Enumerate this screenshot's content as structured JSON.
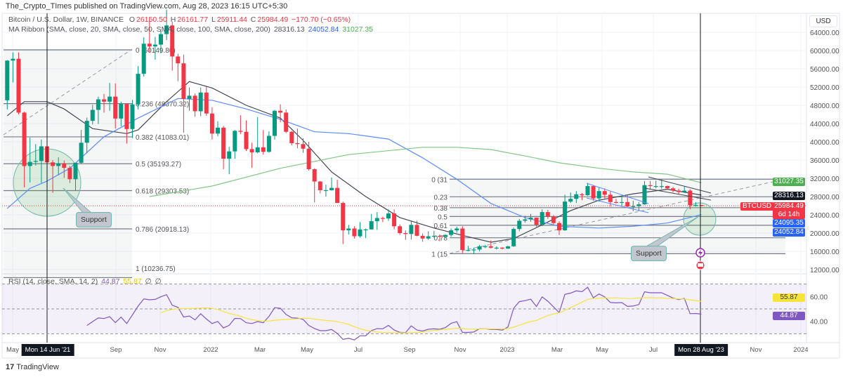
{
  "header": {
    "publisher_line": "The_Crypto_TImes published on TradingView.com, Aug 28, 2023 16:15 UTC+5:30"
  },
  "legend": {
    "symbol": "Bitcoin / U.S. Dollar, 1W, BINANCE",
    "o_label": "O",
    "o": "26150.50",
    "h_label": "H",
    "h": "26161.77",
    "l_label": "L",
    "l": "25911.44",
    "c_label": "C",
    "c": "25984.49",
    "change": "−170.70 (−0.65%)"
  },
  "ma_legend": {
    "label": "MA Ribbon (SMA, close, 20, SMA, close, 50, SMA, close, 100, SMA, close, 200)",
    "v1": "28316.13",
    "v2": "24052.84",
    "v3": "31027.35"
  },
  "rsi_legend": {
    "label": "RSI (14, close, SMA, 14, 2)",
    "rsi": "44.87",
    "sma": "55.87",
    "extra1": "∅",
    "extra2": "∅"
  },
  "price_axis": {
    "currency": "USD",
    "ticks": [
      "64000.00",
      "60000.00",
      "56000.00",
      "52000.00",
      "48000.00",
      "44000.00",
      "40000.00",
      "36000.00",
      "32000.00",
      "28000.00",
      "24000.00",
      "20000.00",
      "16000.00",
      "12000.00"
    ],
    "tick_values": [
      64000,
      60000,
      56000,
      52000,
      48000,
      44000,
      40000,
      36000,
      32000,
      28000,
      24000,
      20000,
      16000,
      12000
    ]
  },
  "rsi_axis": {
    "ticks": [
      "60.00",
      "40.00"
    ]
  },
  "badges": {
    "ma200": "31027.35",
    "ma20": "28316.13",
    "price": "25984.49",
    "countdown": "6d 14h",
    "level_a": "24095.35",
    "ma50": "24052.84",
    "symbol_tag": "BTCUSD",
    "rsi_sma": "55.87",
    "rsi": "44.87"
  },
  "time_axis": {
    "labels": [
      "May",
      "Sep",
      "Nov",
      "2022",
      "Mar",
      "May",
      "Jul",
      "Sep",
      "Nov",
      "2023",
      "Mar",
      "May",
      "Jul",
      "Nov",
      "2024"
    ],
    "crosshair_left": "Mon 14 Jun '21",
    "crosshair_right": "Mon 28 Aug '23"
  },
  "fib_left": {
    "labels": [
      "0 (60149.80)",
      "0.236 (48370.32)",
      "0.382 (41083.01)",
      "0.5 (35193.27)",
      "0.618 (29303.53)",
      "0.786 (20918.13)",
      "1 (10236.75)"
    ],
    "levels": [
      0,
      0.236,
      0.382,
      0.5,
      0.618,
      0.786,
      1
    ],
    "top": 60149.8,
    "bottom": 10236.75
  },
  "fib_right": {
    "labels": [
      "0 (31",
      "0.23",
      "0.38",
      "0.5",
      "0.61",
      "0.78",
      "1 (15"
    ],
    "levels": [
      0,
      0.236,
      0.382,
      0.5,
      0.618,
      0.786,
      1
    ],
    "top": 31804,
    "bottom": 15476
  },
  "annotations": {
    "support_left": "Support",
    "support_right": "Support"
  },
  "footer": {
    "logo": "TradingView",
    "logo_mark": "17"
  },
  "colors": {
    "up": "#089981",
    "down": "#f23645",
    "sma20": "#434651",
    "sma50": "#5b8cff",
    "sma200": "#81c784",
    "rsi": "#7e57c2",
    "rsi_sma": "#f5e53b",
    "fib": "#787b86",
    "support": "#4caf50"
  },
  "chart_data": {
    "type": "candlestick",
    "title": "Bitcoin / U.S. Dollar, 1W, BINANCE",
    "ylim": [
      12000,
      66000
    ],
    "y_scale": "linear",
    "grid": true,
    "dates": [
      "2021-04-26",
      "2021-05-03",
      "2021-05-10",
      "2021-05-17",
      "2021-05-24",
      "2021-05-31",
      "2021-06-07",
      "2021-06-14",
      "2021-06-21",
      "2021-06-28",
      "2021-07-05",
      "2021-07-12",
      "2021-07-19",
      "2021-07-26",
      "2021-08-02",
      "2021-08-09",
      "2021-08-16",
      "2021-08-23",
      "2021-08-30",
      "2021-09-06",
      "2021-09-13",
      "2021-09-20",
      "2021-09-27",
      "2021-10-04",
      "2021-10-11",
      "2021-10-18",
      "2021-10-25",
      "2021-11-01",
      "2021-11-08",
      "2021-11-15",
      "2021-11-22",
      "2021-11-29",
      "2021-12-06",
      "2021-12-13",
      "2021-12-20",
      "2021-12-27",
      "2022-01-03",
      "2022-01-10",
      "2022-01-17",
      "2022-01-24",
      "2022-01-31",
      "2022-02-07",
      "2022-02-14",
      "2022-02-21",
      "2022-02-28",
      "2022-03-07",
      "2022-03-14",
      "2022-03-21",
      "2022-03-28",
      "2022-04-04",
      "2022-04-11",
      "2022-04-18",
      "2022-04-25",
      "2022-05-02",
      "2022-05-09",
      "2022-05-16",
      "2022-05-23",
      "2022-05-30",
      "2022-06-06",
      "2022-06-13",
      "2022-06-20",
      "2022-06-27",
      "2022-07-04",
      "2022-07-11",
      "2022-07-18",
      "2022-07-25",
      "2022-08-01",
      "2022-08-08",
      "2022-08-15",
      "2022-08-22",
      "2022-08-29",
      "2022-09-05",
      "2022-09-12",
      "2022-09-19",
      "2022-09-26",
      "2022-10-03",
      "2022-10-10",
      "2022-10-17",
      "2022-10-24",
      "2022-10-31",
      "2022-11-07",
      "2022-11-14",
      "2022-11-21",
      "2022-11-28",
      "2022-12-05",
      "2022-12-12",
      "2022-12-19",
      "2022-12-26",
      "2023-01-02",
      "2023-01-09",
      "2023-01-16",
      "2023-01-23",
      "2023-01-30",
      "2023-02-06",
      "2023-02-13",
      "2023-02-20",
      "2023-02-27",
      "2023-03-06",
      "2023-03-13",
      "2023-03-20",
      "2023-03-27",
      "2023-04-03",
      "2023-04-10",
      "2023-04-17",
      "2023-04-24",
      "2023-05-01",
      "2023-05-08",
      "2023-05-15",
      "2023-05-22",
      "2023-05-29",
      "2023-06-05",
      "2023-06-12",
      "2023-06-19",
      "2023-06-26",
      "2023-07-03",
      "2023-07-10",
      "2023-07-17",
      "2023-07-24",
      "2023-07-31",
      "2023-08-07",
      "2023-08-14",
      "2023-08-21",
      "2023-08-28"
    ],
    "ohlc": [
      [
        49100,
        57900,
        47100,
        57800
      ],
      [
        57800,
        59600,
        53000,
        58200
      ],
      [
        58200,
        59600,
        46000,
        46400
      ],
      [
        46400,
        46600,
        30000,
        34700
      ],
      [
        34700,
        40900,
        31100,
        35600
      ],
      [
        35600,
        39500,
        34800,
        35800
      ],
      [
        35800,
        40500,
        31000,
        39000
      ],
      [
        39000,
        41300,
        32000,
        35500
      ],
      [
        35500,
        36000,
        28800,
        34700
      ],
      [
        34700,
        36600,
        32700,
        35300
      ],
      [
        35300,
        35900,
        32100,
        34300
      ],
      [
        34300,
        34700,
        31000,
        31800
      ],
      [
        31800,
        35400,
        29300,
        35400
      ],
      [
        35400,
        42600,
        35200,
        39800
      ],
      [
        39800,
        45300,
        37500,
        44600
      ],
      [
        44600,
        48100,
        43800,
        47000
      ],
      [
        47000,
        49900,
        43900,
        49300
      ],
      [
        49300,
        50500,
        46400,
        48800
      ],
      [
        48800,
        52900,
        46800,
        49900
      ],
      [
        49900,
        52800,
        42900,
        45100
      ],
      [
        45100,
        48800,
        43400,
        48300
      ],
      [
        48300,
        48400,
        39600,
        42800
      ],
      [
        42800,
        49200,
        40800,
        48200
      ],
      [
        48200,
        56600,
        47100,
        54900
      ],
      [
        54900,
        62900,
        54300,
        61500
      ],
      [
        61500,
        67000,
        59600,
        60900
      ],
      [
        60900,
        63000,
        58000,
        61300
      ],
      [
        61300,
        64300,
        59400,
        63600
      ],
      [
        63600,
        69000,
        62300,
        65500
      ],
      [
        65500,
        66300,
        55600,
        58700
      ],
      [
        58700,
        59300,
        53300,
        57200
      ],
      [
        57200,
        59100,
        42000,
        49400
      ],
      [
        49400,
        51900,
        46800,
        50100
      ],
      [
        50100,
        50600,
        45500,
        46700
      ],
      [
        46700,
        51900,
        45600,
        50800
      ],
      [
        50800,
        52100,
        45700,
        46200
      ],
      [
        46200,
        47600,
        40500,
        41800
      ],
      [
        41800,
        44500,
        41200,
        43100
      ],
      [
        43100,
        43500,
        34000,
        36300
      ],
      [
        36300,
        38900,
        32900,
        37900
      ],
      [
        37900,
        42600,
        36300,
        42400
      ],
      [
        42400,
        45800,
        41700,
        42200
      ],
      [
        42200,
        44700,
        38000,
        38400
      ],
      [
        38400,
        39800,
        34300,
        37700
      ],
      [
        37700,
        45400,
        37500,
        38800
      ],
      [
        38800,
        42600,
        37200,
        37800
      ],
      [
        37800,
        42300,
        37600,
        41300
      ],
      [
        41300,
        47000,
        40500,
        46800
      ],
      [
        46800,
        48200,
        44300,
        46400
      ],
      [
        46400,
        47100,
        41900,
        42200
      ],
      [
        42200,
        42400,
        39200,
        39700
      ],
      [
        39700,
        42900,
        38600,
        39500
      ],
      [
        39500,
        40800,
        37600,
        38500
      ],
      [
        38500,
        40000,
        33700,
        34000
      ],
      [
        34000,
        34200,
        26700,
        31300
      ],
      [
        31300,
        31400,
        28700,
        29400
      ],
      [
        29400,
        30600,
        28000,
        29400
      ],
      [
        29400,
        32200,
        29300,
        29900
      ],
      [
        29900,
        31700,
        26600,
        26600
      ],
      [
        26600,
        26900,
        17600,
        20600
      ],
      [
        20600,
        21800,
        19700,
        21000
      ],
      [
        21000,
        21500,
        18800,
        19300
      ],
      [
        19300,
        22400,
        19000,
        20800
      ],
      [
        20800,
        21000,
        18900,
        20800
      ],
      [
        20800,
        24200,
        20800,
        22600
      ],
      [
        22600,
        24600,
        20700,
        23300
      ],
      [
        23300,
        23600,
        22400,
        23200
      ],
      [
        23200,
        25200,
        22700,
        24300
      ],
      [
        24300,
        25200,
        20800,
        21500
      ],
      [
        21500,
        21900,
        19600,
        20000
      ],
      [
        20000,
        20600,
        18500,
        19800
      ],
      [
        19800,
        22800,
        18600,
        21800
      ],
      [
        21800,
        22700,
        19300,
        19400
      ],
      [
        19400,
        19900,
        18100,
        18800
      ],
      [
        18800,
        20400,
        18500,
        19300
      ],
      [
        19300,
        20500,
        19000,
        19400
      ],
      [
        19400,
        19700,
        18200,
        19200
      ],
      [
        19200,
        19700,
        18900,
        19600
      ],
      [
        19600,
        21000,
        19200,
        20600
      ],
      [
        20600,
        21400,
        20100,
        21000
      ],
      [
        21000,
        21500,
        15600,
        16300
      ],
      [
        16300,
        17200,
        16000,
        16300
      ],
      [
        16300,
        16800,
        15500,
        16400
      ],
      [
        16400,
        17400,
        16000,
        17100
      ],
      [
        17100,
        17400,
        16700,
        17100
      ],
      [
        17100,
        18400,
        16600,
        16800
      ],
      [
        16800,
        17100,
        16400,
        16800
      ],
      [
        16800,
        16900,
        16400,
        16600
      ],
      [
        16600,
        17200,
        16500,
        17100
      ],
      [
        17100,
        21200,
        17000,
        20900
      ],
      [
        20900,
        23100,
        20400,
        22700
      ],
      [
        22700,
        23800,
        22300,
        23000
      ],
      [
        23000,
        24200,
        22500,
        23400
      ],
      [
        23400,
        23400,
        21400,
        21800
      ],
      [
        21800,
        25200,
        21500,
        24600
      ],
      [
        24600,
        25100,
        23100,
        23600
      ],
      [
        23600,
        23900,
        21900,
        22200
      ],
      [
        22200,
        22600,
        19600,
        20600
      ],
      [
        20600,
        28400,
        20500,
        26900
      ],
      [
        26900,
        28900,
        26600,
        27500
      ],
      [
        27500,
        29200,
        26600,
        28500
      ],
      [
        28500,
        28800,
        27200,
        28300
      ],
      [
        28300,
        31000,
        28200,
        30300
      ],
      [
        30300,
        30500,
        27100,
        27600
      ],
      [
        27600,
        30000,
        26900,
        29200
      ],
      [
        29200,
        29800,
        27600,
        28400
      ],
      [
        28400,
        29100,
        25800,
        26800
      ],
      [
        26800,
        27500,
        26500,
        26700
      ],
      [
        26700,
        28200,
        25900,
        26800
      ],
      [
        26800,
        28400,
        25700,
        25800
      ],
      [
        25800,
        27100,
        24800,
        25900
      ],
      [
        25900,
        26800,
        24800,
        26300
      ],
      [
        26300,
        31400,
        26200,
        30500
      ],
      [
        30500,
        31400,
        29500,
        30300
      ],
      [
        30300,
        31500,
        29800,
        30300
      ],
      [
        30300,
        31800,
        29700,
        30300
      ],
      [
        30300,
        30400,
        29500,
        29800
      ],
      [
        29800,
        30100,
        28900,
        29300
      ],
      [
        29300,
        29700,
        28600,
        29000
      ],
      [
        29000,
        30200,
        28800,
        29300
      ],
      [
        29300,
        29600,
        25200,
        26100
      ],
      [
        26100,
        26800,
        25800,
        26150.5
      ],
      [
        26150.5,
        26161.77,
        25911.44,
        25984.49
      ]
    ],
    "series": [
      {
        "name": "SMA 20",
        "points": [
          [
            "2021-04-26",
            45700
          ],
          [
            "2021-05-17",
            48800
          ],
          [
            "2021-06-14",
            48800
          ],
          [
            "2021-07-05",
            47200
          ],
          [
            "2021-08-09",
            42900
          ],
          [
            "2021-09-20",
            41800
          ],
          [
            "2021-10-04",
            42600
          ],
          [
            "2021-11-08",
            48800
          ],
          [
            "2021-12-06",
            53200
          ],
          [
            "2022-01-03",
            51800
          ],
          [
            "2022-02-14",
            48000
          ],
          [
            "2022-03-28",
            45200
          ],
          [
            "2022-04-25",
            40300
          ],
          [
            "2022-05-30",
            33400
          ],
          [
            "2022-07-11",
            28000
          ],
          [
            "2022-08-22",
            23400
          ],
          [
            "2022-10-03",
            21100
          ],
          [
            "2022-11-07",
            19500
          ],
          [
            "2022-12-12",
            18000
          ],
          [
            "2023-01-09",
            18800
          ],
          [
            "2023-02-13",
            21800
          ],
          [
            "2023-03-20",
            24900
          ],
          [
            "2023-04-24",
            27200
          ],
          [
            "2023-06-05",
            28600
          ],
          [
            "2023-07-17",
            29600
          ],
          [
            "2023-08-28",
            28316.13
          ]
        ]
      },
      {
        "name": "SMA 50",
        "points": [
          [
            "2021-04-26",
            25400
          ],
          [
            "2021-05-24",
            29800
          ],
          [
            "2021-06-14",
            31400
          ],
          [
            "2021-07-12",
            34200
          ],
          [
            "2021-08-23",
            41100
          ],
          [
            "2021-10-04",
            45200
          ],
          [
            "2021-11-22",
            49500
          ],
          [
            "2022-01-03",
            49100
          ],
          [
            "2022-02-14",
            47200
          ],
          [
            "2022-03-28",
            44900
          ],
          [
            "2022-05-09",
            42200
          ],
          [
            "2022-06-20",
            41800
          ],
          [
            "2022-08-08",
            40600
          ],
          [
            "2022-09-19",
            36500
          ],
          [
            "2022-10-31",
            31800
          ],
          [
            "2022-12-12",
            26500
          ],
          [
            "2023-01-23",
            23400
          ],
          [
            "2023-03-06",
            21500
          ],
          [
            "2023-04-24",
            21100
          ],
          [
            "2023-06-05",
            21500
          ],
          [
            "2023-07-17",
            22200
          ],
          [
            "2023-08-28",
            24052.84
          ]
        ]
      },
      {
        "name": "SMA 200",
        "points": [
          [
            "2021-10-18",
            28000
          ],
          [
            "2022-01-03",
            30300
          ],
          [
            "2022-03-28",
            34200
          ],
          [
            "2022-06-20",
            37200
          ],
          [
            "2022-09-19",
            38800
          ],
          [
            "2022-10-31",
            38800
          ],
          [
            "2022-12-12",
            38300
          ],
          [
            "2023-01-23",
            36900
          ],
          [
            "2023-03-06",
            35400
          ],
          [
            "2023-04-24",
            34200
          ],
          [
            "2023-06-05",
            33400
          ],
          [
            "2023-07-17",
            32900
          ],
          [
            "2023-08-28",
            31027.35
          ]
        ]
      }
    ],
    "rsi": {
      "period": 14,
      "sma_period": 14,
      "levels": [
        70,
        50,
        30
      ],
      "ylim": [
        0,
        100
      ],
      "last": 44.87,
      "last_sma": 55.87
    }
  }
}
